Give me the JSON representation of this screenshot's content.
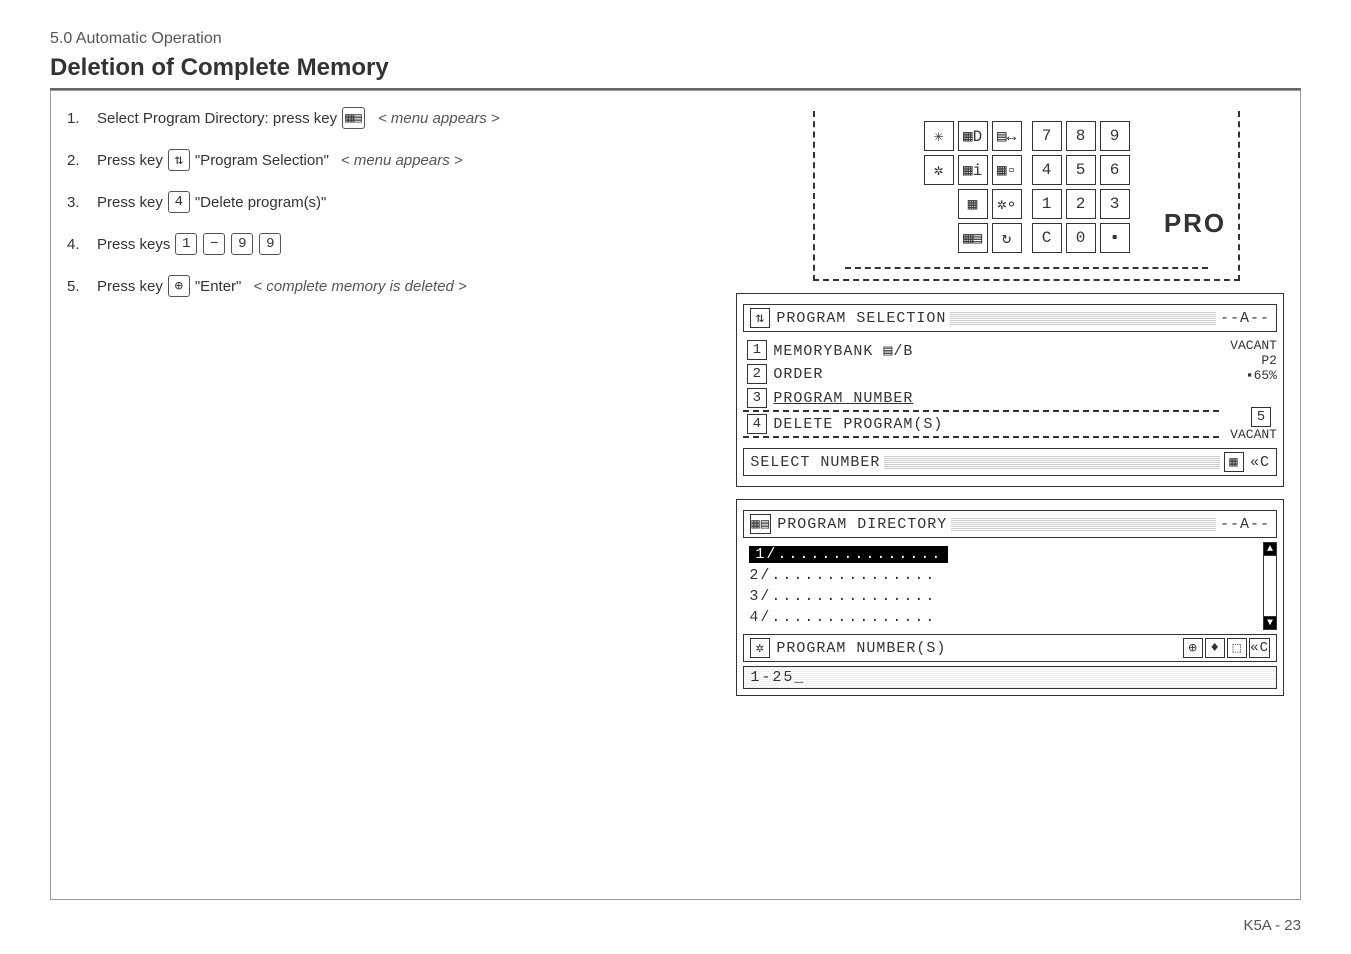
{
  "breadcrumb": "5.0 Automatic Operation",
  "title": "Deletion of Complete Memory",
  "steps": [
    {
      "n": "1.",
      "pre": "Select Program Directory: press key",
      "keys": [
        "▦▤"
      ],
      "post": "",
      "note": "< menu appears >"
    },
    {
      "n": "2.",
      "pre": "Press key",
      "keys": [
        "⇅"
      ],
      "post": "\"Program Selection\"",
      "note": "< menu appears >"
    },
    {
      "n": "3.",
      "pre": "Press key",
      "keys": [
        "4"
      ],
      "post": "\"Delete program(s)\"",
      "note": ""
    },
    {
      "n": "4.",
      "pre": "Press keys",
      "keys": [
        "1",
        "−",
        "9",
        "9"
      ],
      "post": "",
      "note": ""
    },
    {
      "n": "5.",
      "pre": "Press key",
      "keys": [
        "⊕"
      ],
      "post": "\"Enter\"",
      "note": "< complete memory is deleted >"
    }
  ],
  "keypad": {
    "left_rows": [
      [
        "✳",
        "▦D",
        "▤↔"
      ],
      [
        "✲",
        "▦i",
        "▦▫"
      ],
      [
        "",
        "▦",
        "✲∘"
      ],
      [
        "",
        "▦▤",
        "↻"
      ]
    ],
    "num_rows": [
      [
        "7",
        "8",
        "9"
      ],
      [
        "4",
        "5",
        "6"
      ],
      [
        "1",
        "2",
        "3"
      ],
      [
        "C",
        "0",
        "▪"
      ]
    ],
    "brand": "PRO"
  },
  "selection": {
    "icon": "⇅",
    "title": "PROGRAM SELECTION",
    "corner": "--A--",
    "items": [
      {
        "n": "1",
        "label": "MEMORYBANK ▤/B"
      },
      {
        "n": "2",
        "label": "ORDER"
      },
      {
        "n": "3",
        "label": "PROGRAM NUMBER",
        "underline": true
      },
      {
        "n": "4",
        "label": "DELETE PROGRAM(S)",
        "selected": true
      }
    ],
    "side_vacant_top": "VACANT",
    "side_p2": "P2",
    "side_pct": "65%",
    "item5": {
      "n": "5",
      "label": "VACANT"
    },
    "footer": "SELECT NUMBER"
  },
  "directory": {
    "icon": "▦▤",
    "title": "PROGRAM DIRECTORY",
    "corner": "--A--",
    "rows": [
      "1/...............",
      "2/...............",
      "3/...............",
      "4/..............."
    ],
    "footer_label": "PROGRAM NUMBER(S)",
    "footer_icon": "✲",
    "icons": [
      "⊕",
      "♦",
      "⬚",
      "«C"
    ],
    "input": "1-25_"
  },
  "footer": "K5A - 23",
  "colors": {
    "text": "#333333",
    "border": "#666666"
  }
}
